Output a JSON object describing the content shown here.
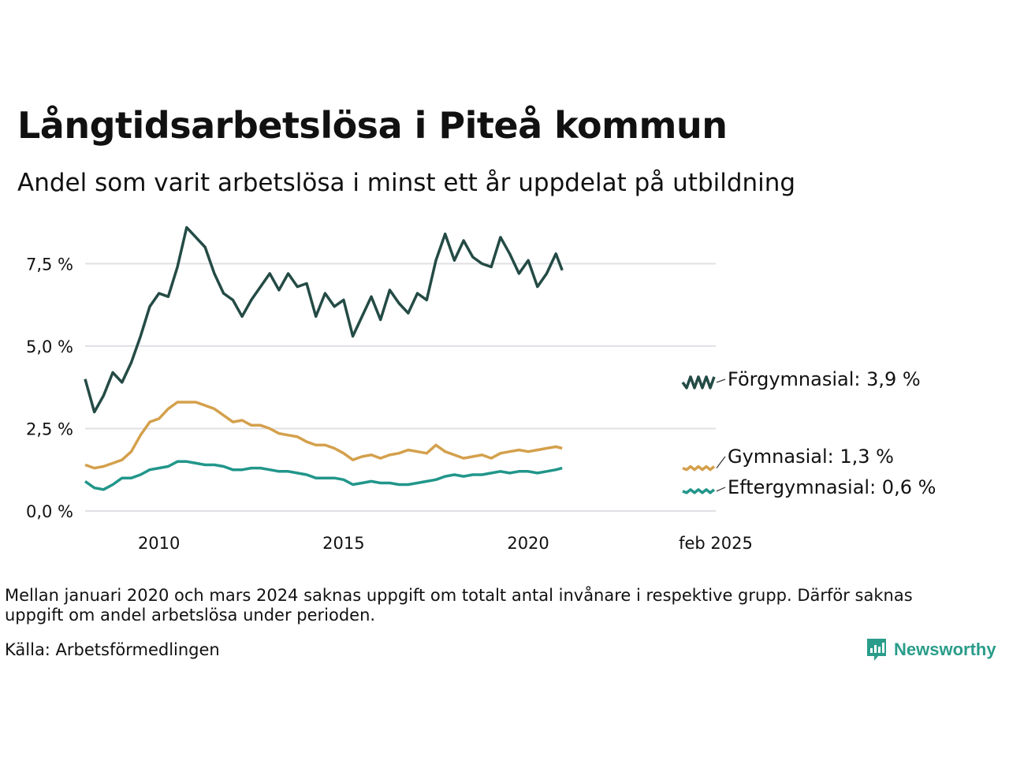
{
  "title": "Långtidsarbetslösa i Piteå kommun",
  "subtitle": "Andel som varit arbetslösa i minst ett år uppdelat på utbildning",
  "note": "Mellan januari 2020 och mars 2024 saknas uppgift om totalt antal invånare i respektive grupp. Därför saknas uppgift om andel arbetslösa under perioden.",
  "source": "Källa: Arbetsförmedlingen",
  "brand": "Newsworthy",
  "colors": {
    "brand": "#2a9d8a",
    "grid": "#e0e0e5"
  },
  "chart_data": {
    "type": "line",
    "title": "Långtidsarbetslösa i Piteå kommun",
    "subtitle": "Andel som varit arbetslösa i minst ett år uppdelat på utbildning",
    "xlabel": "",
    "ylabel": "",
    "xlim": [
      2008.0,
      2025.08
    ],
    "ylim": [
      0,
      8.8
    ],
    "x_ticks": [
      2010,
      2015,
      2020,
      2025.08
    ],
    "x_tick_labels": [
      "2010",
      "2015",
      "2020",
      "feb 2025"
    ],
    "y_ticks": [
      0,
      2.5,
      5.0,
      7.5
    ],
    "y_tick_labels": [
      "0,0 %",
      "2,5 %",
      "5,0 %",
      "7,5 %"
    ],
    "grid": true,
    "legend": "right, direct labels",
    "x": [
      2008.0,
      2008.25,
      2008.5,
      2008.75,
      2009.0,
      2009.25,
      2009.5,
      2009.75,
      2010.0,
      2010.25,
      2010.5,
      2010.75,
      2011.0,
      2011.25,
      2011.5,
      2011.75,
      2012.0,
      2012.25,
      2012.5,
      2012.75,
      2013.0,
      2013.25,
      2013.5,
      2013.75,
      2014.0,
      2014.25,
      2014.5,
      2014.75,
      2015.0,
      2015.25,
      2015.5,
      2015.75,
      2016.0,
      2016.25,
      2016.5,
      2016.75,
      2017.0,
      2017.25,
      2017.5,
      2017.75,
      2018.0,
      2018.25,
      2018.5,
      2018.75,
      2019.0,
      2019.25,
      2019.5,
      2019.75,
      2020.0,
      2020.25,
      2020.5,
      2020.75,
      2020.92
    ],
    "series": [
      {
        "name": "Förgymnasial",
        "end_label": "Förgymnasial: 3,9 %",
        "color": "#244b45",
        "values": [
          4.0,
          3.0,
          3.5,
          4.2,
          3.9,
          4.5,
          5.3,
          6.2,
          6.6,
          6.5,
          7.4,
          8.6,
          8.3,
          8.0,
          7.2,
          6.6,
          6.4,
          5.9,
          6.4,
          6.8,
          7.2,
          6.7,
          7.2,
          6.8,
          6.9,
          5.9,
          6.6,
          6.2,
          6.4,
          5.3,
          5.9,
          6.5,
          5.8,
          6.7,
          6.3,
          6.0,
          6.6,
          6.4,
          7.6,
          8.4,
          7.6,
          8.2,
          7.7,
          7.5,
          7.4,
          8.3,
          7.8,
          7.2,
          7.6,
          6.8,
          7.2,
          7.8,
          7.3
        ],
        "end_value": 3.9
      },
      {
        "name": "Gymnasial",
        "end_label": "Gymnasial: 1,3 %",
        "color": "#d4a04c",
        "values": [
          1.4,
          1.3,
          1.35,
          1.45,
          1.55,
          1.8,
          2.3,
          2.7,
          2.8,
          3.1,
          3.3,
          3.3,
          3.3,
          3.2,
          3.1,
          2.9,
          2.7,
          2.75,
          2.6,
          2.6,
          2.5,
          2.35,
          2.3,
          2.25,
          2.1,
          2.0,
          2.0,
          1.9,
          1.75,
          1.55,
          1.65,
          1.7,
          1.6,
          1.7,
          1.75,
          1.85,
          1.8,
          1.75,
          2.0,
          1.8,
          1.7,
          1.6,
          1.65,
          1.7,
          1.6,
          1.75,
          1.8,
          1.85,
          1.8,
          1.85,
          1.9,
          1.95,
          1.9
        ],
        "end_value": 1.3
      },
      {
        "name": "Eftergymnasial",
        "end_label": "Eftergymnasial: 0,6 %",
        "color": "#21968a",
        "values": [
          0.9,
          0.7,
          0.65,
          0.8,
          1.0,
          1.0,
          1.1,
          1.25,
          1.3,
          1.35,
          1.5,
          1.5,
          1.45,
          1.4,
          1.4,
          1.35,
          1.25,
          1.25,
          1.3,
          1.3,
          1.25,
          1.2,
          1.2,
          1.15,
          1.1,
          1.0,
          1.0,
          1.0,
          0.95,
          0.8,
          0.85,
          0.9,
          0.85,
          0.85,
          0.8,
          0.8,
          0.85,
          0.9,
          0.95,
          1.05,
          1.1,
          1.05,
          1.1,
          1.1,
          1.15,
          1.2,
          1.15,
          1.2,
          1.2,
          1.15,
          1.2,
          1.25,
          1.3
        ],
        "end_value": 0.6
      }
    ]
  }
}
